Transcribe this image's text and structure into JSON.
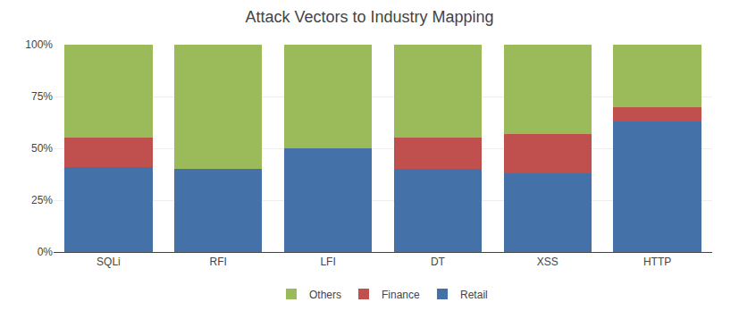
{
  "chart_data": {
    "type": "bar",
    "title": "Attack Vectors to Industry Mapping",
    "categories": [
      "SQLi",
      "RFI",
      "LFI",
      "DT",
      "XSS",
      "HTTP"
    ],
    "series": [
      {
        "name": "Retail",
        "color": "#4472a8",
        "values": [
          41,
          40,
          50,
          40,
          38,
          63
        ]
      },
      {
        "name": "Finance",
        "color": "#c0504d",
        "values": [
          14,
          0,
          0,
          15,
          19,
          7
        ]
      },
      {
        "name": "Others",
        "color": "#9bba59",
        "values": [
          45,
          60,
          50,
          45,
          43,
          30
        ]
      }
    ],
    "stacked": true,
    "ylim": [
      0,
      100
    ],
    "yticks": [
      {
        "value": 0,
        "label": "0%"
      },
      {
        "value": 25,
        "label": "25%"
      },
      {
        "value": 50,
        "label": "50%"
      },
      {
        "value": 75,
        "label": "75%"
      },
      {
        "value": 100,
        "label": "100%"
      }
    ],
    "grid": true,
    "legend": "bottom"
  }
}
